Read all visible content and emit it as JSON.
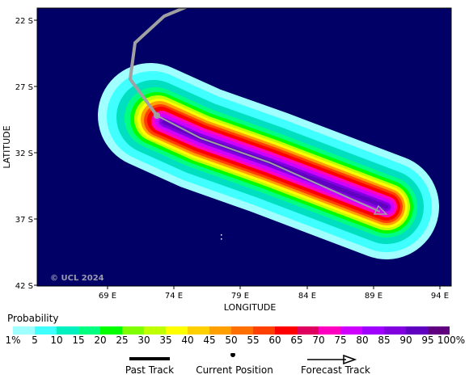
{
  "map": {
    "y_axis_label": "LATITUDE",
    "x_axis_label": "LONGITUDE",
    "lat_ticks": [
      "22 S",
      "27 S",
      "32 S",
      "37 S",
      "42 S"
    ],
    "lon_ticks": [
      "69 E",
      "74 E",
      "79 E",
      "84 E",
      "89 E",
      "94 E"
    ],
    "copyright": "© UCL 2024",
    "ocean_color": "#000066",
    "track_color": "#a0a0a0"
  },
  "legend": {
    "title": "Probability",
    "ticks": [
      "1%",
      "5",
      "10",
      "15",
      "20",
      "25",
      "30",
      "35",
      "40",
      "45",
      "50",
      "55",
      "60",
      "65",
      "70",
      "75",
      "80",
      "85",
      "90",
      "95",
      "100%"
    ],
    "colors": [
      "#a0ffff",
      "#40ffff",
      "#00f0c0",
      "#00ff80",
      "#00ff00",
      "#80ff00",
      "#c0ff00",
      "#ffff00",
      "#ffd000",
      "#ffa000",
      "#ff7000",
      "#ff4000",
      "#ff0000",
      "#e00060",
      "#ff00c0",
      "#d000ff",
      "#a000ff",
      "#8000e0",
      "#6000c0",
      "#600080"
    ],
    "past_track_label": "Past Track",
    "current_position_label": "Current Position",
    "forecast_track_label": "Forecast Track"
  }
}
